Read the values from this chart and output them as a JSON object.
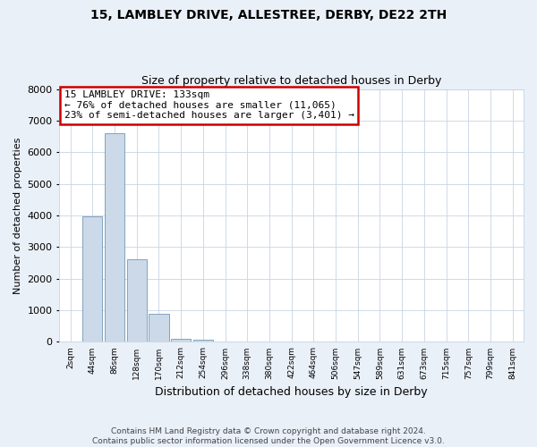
{
  "title": "15, LAMBLEY DRIVE, ALLESTREE, DERBY, DE22 2TH",
  "subtitle": "Size of property relative to detached houses in Derby",
  "xlabel": "Distribution of detached houses by size in Derby",
  "ylabel": "Number of detached properties",
  "bar_color": "#ccd9e8",
  "bar_edge_color": "#7099b8",
  "background_color": "#eaf0f8",
  "plot_bg_color": "#ffffff",
  "categories": [
    "2sqm",
    "44sqm",
    "86sqm",
    "128sqm",
    "170sqm",
    "212sqm",
    "254sqm",
    "296sqm",
    "338sqm",
    "380sqm",
    "422sqm",
    "464sqm",
    "506sqm",
    "547sqm",
    "589sqm",
    "631sqm",
    "673sqm",
    "715sqm",
    "757sqm",
    "799sqm",
    "841sqm"
  ],
  "values": [
    0,
    3980,
    6600,
    2620,
    900,
    100,
    60,
    0,
    0,
    0,
    0,
    0,
    0,
    0,
    0,
    0,
    0,
    0,
    0,
    0,
    0
  ],
  "ylim": [
    0,
    8000
  ],
  "yticks": [
    0,
    1000,
    2000,
    3000,
    4000,
    5000,
    6000,
    7000,
    8000
  ],
  "annotation_title": "15 LAMBLEY DRIVE: 133sqm",
  "annotation_line1": "← 76% of detached houses are smaller (11,065)",
  "annotation_line2": "23% of semi-detached houses are larger (3,401) →",
  "annotation_box_color": "#ffffff",
  "annotation_box_edge": "#cc0000",
  "footnote1": "Contains HM Land Registry data © Crown copyright and database right 2024.",
  "footnote2": "Contains public sector information licensed under the Open Government Licence v3.0."
}
